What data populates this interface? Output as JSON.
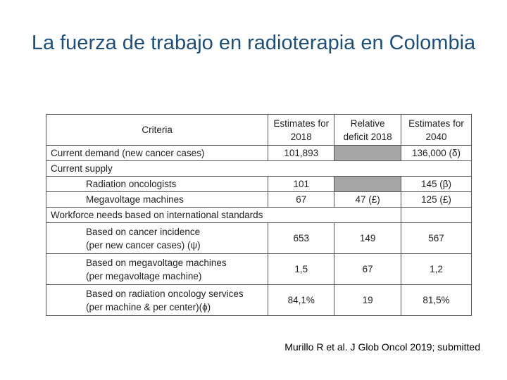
{
  "title": "La fuerza de trabajo en radioterapia en Colombia",
  "table": {
    "headers": [
      "Criteria",
      "Estimates for 2018",
      "Relative deficit 2018",
      "Estimates for 2040"
    ],
    "rows": [
      {
        "label": "Current demand (new cancer cases)",
        "e2018": "101,893",
        "deficit": "",
        "e2040": "136,000 (δ)"
      },
      {
        "label": "Current supply"
      },
      {
        "label": "Radiation oncologists",
        "e2018": "101",
        "deficit": "",
        "e2040": "145 (β)"
      },
      {
        "label": "Megavoltage machines",
        "e2018": "67",
        "deficit": "47 (£)",
        "e2040": "125 (£)"
      },
      {
        "label": "Workforce needs based on international standards"
      },
      {
        "label1": "Based on cancer incidence",
        "label2": "(per new cancer cases) (ψ)",
        "e2018": "653",
        "deficit": "149",
        "e2040": "567"
      },
      {
        "label1": "Based on megavoltage machines",
        "label2": "(per megavoltage machine)",
        "e2018": "1,5",
        "deficit": "67",
        "e2040": "1,2"
      },
      {
        "label1": "Based on radiation oncology services",
        "label2": "(per machine & per center)(ϕ)",
        "e2018": "84,1%",
        "deficit": "19",
        "e2040": "81,5%"
      }
    ]
  },
  "citation": "Murillo R et al. J Glob Oncol 2019; submitted"
}
